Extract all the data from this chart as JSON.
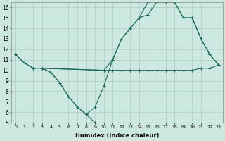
{
  "xlabel": "Humidex (Indice chaleur)",
  "background_color": "#cde8e0",
  "grid_color": "#aacfc8",
  "line_color": "#1a6b5a",
  "xlim": [
    -0.5,
    23.5
  ],
  "ylim": [
    5,
    16.5
  ],
  "xticks": [
    0,
    1,
    2,
    3,
    4,
    5,
    6,
    7,
    8,
    9,
    10,
    11,
    12,
    13,
    14,
    15,
    16,
    17,
    18,
    19,
    20,
    21,
    22,
    23
  ],
  "yticks": [
    5,
    6,
    7,
    8,
    9,
    10,
    11,
    12,
    13,
    14,
    15,
    16
  ],
  "line1_x": [
    0,
    1,
    2,
    3,
    4,
    5,
    6,
    7,
    8,
    9
  ],
  "line1_y": [
    11.5,
    10.7,
    10.2,
    10.2,
    9.8,
    8.8,
    7.5,
    6.5,
    5.8,
    5.0
  ],
  "line2_x": [
    3,
    4,
    5,
    6,
    7,
    8,
    9,
    10,
    11,
    12,
    13,
    14,
    15,
    16,
    17,
    18,
    19,
    20,
    21,
    22,
    23
  ],
  "line2_y": [
    10.2,
    9.8,
    8.8,
    7.5,
    6.5,
    5.8,
    6.5,
    8.5,
    11.0,
    13.0,
    14.0,
    15.0,
    15.3,
    16.5,
    16.5,
    16.5,
    15.0,
    15.0,
    13.0,
    11.5,
    10.5
  ],
  "line3_x": [
    0,
    1,
    2,
    3,
    10,
    11,
    12,
    13,
    14,
    15,
    16,
    17,
    18,
    19,
    20,
    21,
    22,
    23
  ],
  "line3_y": [
    11.5,
    10.7,
    10.2,
    10.2,
    10.0,
    10.0,
    10.0,
    10.0,
    10.0,
    10.0,
    10.0,
    10.0,
    10.0,
    10.0,
    10.0,
    10.2,
    10.2,
    10.5
  ],
  "line4_x": [
    3,
    10,
    11,
    12,
    13,
    14,
    15,
    16,
    17,
    18,
    19,
    20,
    21,
    22,
    23
  ],
  "line4_y": [
    10.2,
    10.0,
    11.0,
    13.0,
    14.0,
    15.0,
    16.5,
    16.5,
    16.5,
    16.5,
    15.0,
    15.0,
    13.0,
    11.5,
    10.5
  ]
}
